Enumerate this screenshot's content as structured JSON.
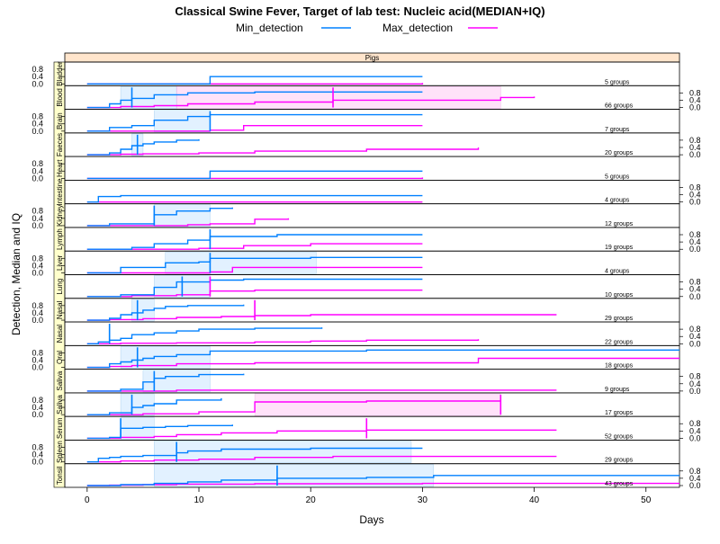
{
  "chart_data": {
    "type": "line",
    "title": "Classical Swine Fever, Target of lab test: Nucleic acid(MEDIAN+IQ)",
    "xlabel": "Days",
    "ylabel": "Detection, Median and IQ",
    "strip_label": "Pigs",
    "xlim": [
      -2,
      53
    ],
    "ylim": [
      0,
      1
    ],
    "x_ticks": [
      "0",
      "10",
      "20",
      "30",
      "40",
      "50"
    ],
    "x_tick_values": [
      0,
      10,
      20,
      30,
      40,
      50
    ],
    "y_ticks": [
      "0.0",
      "0.4",
      "0.8"
    ],
    "y_tick_values": [
      0.0,
      0.4,
      0.8
    ],
    "legend_position": "top",
    "series": [
      {
        "name": "Min_detection",
        "color": "#0080ff"
      },
      {
        "name": "Max_detection",
        "color": "#ff00ff"
      }
    ],
    "panels": [
      {
        "label": "Tonsil",
        "groups": "43 groups",
        "min": [
          [
            0,
            0
          ],
          [
            3,
            0.05
          ],
          [
            6,
            0.12
          ],
          [
            9,
            0.2
          ],
          [
            12,
            0.3
          ],
          [
            17,
            0.4
          ],
          [
            25,
            0.45
          ],
          [
            31,
            0.55
          ],
          [
            53,
            0.55
          ]
        ],
        "max": [
          [
            0,
            0
          ],
          [
            2,
            0.02
          ],
          [
            5,
            0.05
          ],
          [
            8,
            0.08
          ],
          [
            15,
            0.1
          ],
          [
            30,
            0.12
          ],
          [
            53,
            0.12
          ]
        ],
        "min_median": 17,
        "max_median": null,
        "min_iq": [
          6,
          31
        ],
        "max_iq": null
      },
      {
        "label": "Spleen",
        "groups": "29 groups",
        "min": [
          [
            0,
            0
          ],
          [
            1,
            0.2
          ],
          [
            2,
            0.25
          ],
          [
            3,
            0.3
          ],
          [
            5,
            0.35
          ],
          [
            8,
            0.5
          ],
          [
            9,
            0.6
          ],
          [
            12,
            0.7
          ],
          [
            20,
            0.75
          ],
          [
            30,
            0.75
          ]
        ],
        "max": [
          [
            0,
            0
          ],
          [
            3,
            0.05
          ],
          [
            6,
            0.1
          ],
          [
            10,
            0.15
          ],
          [
            15,
            0.25
          ],
          [
            22,
            0.3
          ],
          [
            42,
            0.3
          ]
        ],
        "min_median": 8,
        "max_median": null,
        "min_iq": [
          6,
          29
        ],
        "max_iq": null
      },
      {
        "label": "Serum",
        "groups": "52 groups",
        "min": [
          [
            0,
            0
          ],
          [
            2,
            0.05
          ],
          [
            3,
            0.55
          ],
          [
            5,
            0.6
          ],
          [
            7,
            0.65
          ],
          [
            9,
            0.7
          ],
          [
            13,
            0.75
          ]
        ],
        "max": [
          [
            0,
            0
          ],
          [
            3,
            0.05
          ],
          [
            6,
            0.1
          ],
          [
            8,
            0.2
          ],
          [
            12,
            0.3
          ],
          [
            17,
            0.4
          ],
          [
            25,
            0.45
          ],
          [
            42,
            0.45
          ]
        ],
        "min_median": 3,
        "max_median": 25,
        "min_iq": [
          3,
          6
        ],
        "max_iq": null
      },
      {
        "label": "Saliva",
        "groups": "17 groups",
        "min": [
          [
            0,
            0
          ],
          [
            2,
            0.1
          ],
          [
            4,
            0.4
          ],
          [
            5,
            0.5
          ],
          [
            6,
            0.6
          ],
          [
            8,
            0.8
          ],
          [
            12,
            0.9
          ]
        ],
        "max": [
          [
            0,
            0
          ],
          [
            5,
            0.05
          ],
          [
            10,
            0.15
          ],
          [
            15,
            0.7
          ],
          [
            25,
            0.75
          ],
          [
            37,
            0.75
          ]
        ],
        "min_median": 4,
        "max_median": 37,
        "min_iq": [
          3,
          6
        ],
        "max_iq": [
          15,
          37
        ]
      },
      {
        "label": "Saliva",
        "groups": "9 groups",
        "min": [
          [
            0,
            0
          ],
          [
            3,
            0.1
          ],
          [
            5,
            0.5
          ],
          [
            6,
            0.7
          ],
          [
            7,
            0.8
          ],
          [
            10,
            0.9
          ],
          [
            14,
            0.95
          ]
        ],
        "max": [
          [
            0,
            0
          ],
          [
            8,
            0.05
          ],
          [
            42,
            0.05
          ]
        ],
        "min_median": 6,
        "max_median": null,
        "min_iq": [
          5,
          11
        ],
        "max_iq": null
      },
      {
        "label": "Oral",
        "groups": "18 groups",
        "min": [
          [
            0,
            0
          ],
          [
            2,
            0.2
          ],
          [
            3,
            0.3
          ],
          [
            4,
            0.4
          ],
          [
            5,
            0.5
          ],
          [
            6,
            0.6
          ],
          [
            8,
            0.7
          ],
          [
            11,
            0.9
          ],
          [
            25,
            0.95
          ],
          [
            53,
            0.95
          ]
        ],
        "max": [
          [
            0,
            0
          ],
          [
            2,
            0.05
          ],
          [
            4,
            0.1
          ],
          [
            8,
            0.2
          ],
          [
            15,
            0.25
          ],
          [
            35,
            0.5
          ],
          [
            53,
            0.5
          ]
        ],
        "min_median": 4.5,
        "max_median": null,
        "min_iq": [
          3,
          11
        ],
        "max_iq": null
      },
      {
        "label": "Nasal",
        "groups": "22 groups",
        "min": [
          [
            0,
            0
          ],
          [
            1,
            0.1
          ],
          [
            2,
            0.2
          ],
          [
            3,
            0.3
          ],
          [
            4,
            0.5
          ],
          [
            6,
            0.6
          ],
          [
            8,
            0.7
          ],
          [
            10,
            0.8
          ],
          [
            15,
            0.85
          ],
          [
            21,
            0.9
          ]
        ],
        "max": [
          [
            0,
            0
          ],
          [
            3,
            0.03
          ],
          [
            8,
            0.05
          ],
          [
            15,
            0.1
          ],
          [
            20,
            0.15
          ],
          [
            25,
            0.2
          ],
          [
            35,
            0.25
          ]
        ],
        "min_median": 2,
        "max_median": null,
        "min_iq": null,
        "max_iq": null
      },
      {
        "label": "Nasal",
        "groups": "29 groups",
        "min": [
          [
            0,
            0
          ],
          [
            2,
            0.1
          ],
          [
            3,
            0.3
          ],
          [
            4,
            0.4
          ],
          [
            5,
            0.55
          ],
          [
            6,
            0.65
          ],
          [
            7,
            0.75
          ],
          [
            9,
            0.8
          ],
          [
            14,
            0.85
          ]
        ],
        "max": [
          [
            0,
            0
          ],
          [
            2,
            0.03
          ],
          [
            5,
            0.08
          ],
          [
            8,
            0.15
          ],
          [
            12,
            0.2
          ],
          [
            15,
            0.25
          ],
          [
            20,
            0.3
          ],
          [
            42,
            0.3
          ]
        ],
        "min_median": 4.5,
        "max_median": 15,
        "min_iq": [
          4,
          6
        ],
        "max_iq": null
      },
      {
        "label": "Lung",
        "groups": "10 groups",
        "min": [
          [
            0,
            0
          ],
          [
            3,
            0.1
          ],
          [
            6,
            0.5
          ],
          [
            8,
            0.8
          ],
          [
            11,
            0.9
          ],
          [
            14,
            0.95
          ],
          [
            30,
            0.95
          ]
        ],
        "max": [
          [
            0,
            0
          ],
          [
            4,
            0.05
          ],
          [
            8,
            0.1
          ],
          [
            11,
            0.3
          ],
          [
            15,
            0.35
          ],
          [
            30,
            0.35
          ]
        ],
        "min_median": 8.5,
        "max_median": 11,
        "min_iq": [
          6,
          11
        ],
        "max_iq": null
      },
      {
        "label": "Liver",
        "groups": "4 groups",
        "min": [
          [
            0,
            0
          ],
          [
            3,
            0.3
          ],
          [
            7,
            0.55
          ],
          [
            10,
            0.6
          ],
          [
            11,
            0.8
          ],
          [
            20,
            0.85
          ],
          [
            30,
            0.85
          ]
        ],
        "max": [
          [
            0,
            0
          ],
          [
            11,
            0.05
          ],
          [
            13,
            0.3
          ],
          [
            30,
            0.3
          ]
        ],
        "min_median": 11,
        "max_median": null,
        "min_iq": [
          7,
          20.5
        ],
        "max_iq": null
      },
      {
        "label": "Lymph",
        "groups": "19 groups",
        "min": [
          [
            0,
            0
          ],
          [
            4,
            0.1
          ],
          [
            6,
            0.3
          ],
          [
            9,
            0.5
          ],
          [
            11,
            0.7
          ],
          [
            17,
            0.8
          ],
          [
            30,
            0.8
          ]
        ],
        "max": [
          [
            0,
            0
          ],
          [
            10,
            0.05
          ],
          [
            14,
            0.2
          ],
          [
            20,
            0.3
          ],
          [
            30,
            0.3
          ]
        ],
        "min_median": 11,
        "max_median": null,
        "min_iq": null,
        "max_iq": null
      },
      {
        "label": "Kidney",
        "groups": "12 groups",
        "min": [
          [
            0,
            0
          ],
          [
            2,
            0.1
          ],
          [
            6,
            0.6
          ],
          [
            8,
            0.8
          ],
          [
            11,
            0.95
          ],
          [
            13,
            1.0
          ]
        ],
        "max": [
          [
            0,
            0
          ],
          [
            9,
            0.05
          ],
          [
            11,
            0.1
          ],
          [
            15,
            0.35
          ],
          [
            18,
            0.4
          ]
        ],
        "min_median": 6,
        "max_median": null,
        "min_iq": [
          6,
          11
        ],
        "max_iq": null
      },
      {
        "label": "Intestine",
        "groups": "4 groups",
        "min": [
          [
            0,
            0
          ],
          [
            1,
            0.3
          ],
          [
            3,
            0.35
          ],
          [
            30,
            0.35
          ]
        ],
        "max": [
          [
            0,
            0
          ],
          [
            30,
            0.0
          ]
        ],
        "min_median": null,
        "max_median": null,
        "min_iq": null,
        "max_iq": null
      },
      {
        "label": "Heart",
        "groups": "5 groups",
        "min": [
          [
            0,
            0
          ],
          [
            11,
            0.4
          ],
          [
            30,
            0.4
          ]
        ],
        "max": [
          [
            0,
            0
          ],
          [
            30,
            0.05
          ]
        ],
        "min_median": null,
        "max_median": null,
        "min_iq": null,
        "max_iq": null
      },
      {
        "label": "Faeces",
        "groups": "20 groups",
        "min": [
          [
            0,
            0
          ],
          [
            2,
            0.1
          ],
          [
            3,
            0.3
          ],
          [
            4,
            0.5
          ],
          [
            5,
            0.6
          ],
          [
            6,
            0.7
          ],
          [
            8,
            0.8
          ],
          [
            10,
            0.85
          ]
        ],
        "max": [
          [
            0,
            0
          ],
          [
            3,
            0.03
          ],
          [
            5,
            0.05
          ],
          [
            10,
            0.1
          ],
          [
            15,
            0.2
          ],
          [
            25,
            0.3
          ],
          [
            35,
            0.4
          ]
        ],
        "min_median": 4.5,
        "max_median": null,
        "min_iq": [
          4,
          5
        ],
        "max_iq": null
      },
      {
        "label": "Brain",
        "groups": "7 groups",
        "min": [
          [
            0,
            0
          ],
          [
            2,
            0.2
          ],
          [
            4,
            0.3
          ],
          [
            6,
            0.6
          ],
          [
            9,
            0.8
          ],
          [
            11,
            0.9
          ],
          [
            30,
            0.9
          ]
        ],
        "max": [
          [
            0,
            0
          ],
          [
            11,
            0.05
          ],
          [
            14,
            0.3
          ],
          [
            30,
            0.3
          ]
        ],
        "min_median": 11,
        "max_median": null,
        "min_iq": [
          6,
          11
        ],
        "max_iq": null
      },
      {
        "label": "Blood",
        "groups": "66 groups",
        "min": [
          [
            0,
            0
          ],
          [
            2,
            0.2
          ],
          [
            3,
            0.4
          ],
          [
            4,
            0.5
          ],
          [
            6,
            0.7
          ],
          [
            9,
            0.8
          ],
          [
            15,
            0.85
          ],
          [
            30,
            0.85
          ]
        ],
        "max": [
          [
            0,
            0
          ],
          [
            3,
            0.05
          ],
          [
            6,
            0.1
          ],
          [
            9,
            0.2
          ],
          [
            15,
            0.3
          ],
          [
            22,
            0.4
          ],
          [
            37,
            0.55
          ],
          [
            40,
            0.6
          ]
        ],
        "min_median": 4,
        "max_median": 22,
        "min_iq": [
          3,
          8
        ],
        "max_iq": [
          8,
          37
        ]
      },
      {
        "label": "Bladder",
        "groups": "5 groups",
        "min": [
          [
            0,
            0
          ],
          [
            11,
            0.4
          ],
          [
            30,
            0.4
          ]
        ],
        "max": [
          [
            0,
            0
          ],
          [
            30,
            0.05
          ]
        ],
        "min_median": null,
        "max_median": null,
        "min_iq": null,
        "max_iq": null
      }
    ]
  }
}
